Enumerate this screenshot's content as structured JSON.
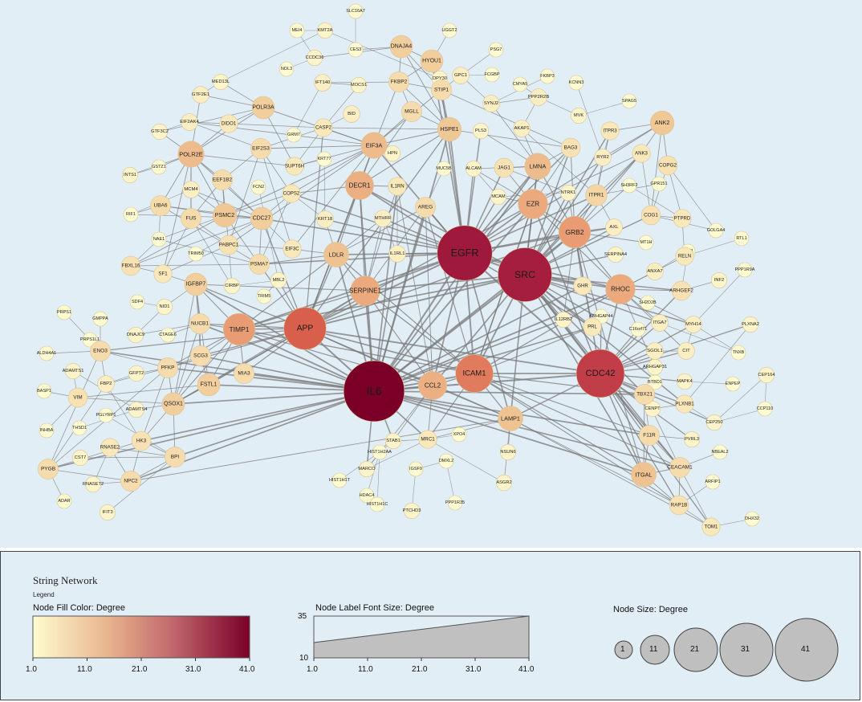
{
  "colors": {
    "background": "#e2eef6",
    "edge": "#7a7a7a",
    "node_stroke": "#d8c49a",
    "degree_low": "#fffbd0",
    "degree_high": "#7a0028"
  },
  "nodes": [
    {
      "label": "SLC16A7",
      "deg": 1
    },
    {
      "label": "MEI4",
      "deg": 1
    },
    {
      "label": "KMT2A",
      "deg": 2
    },
    {
      "label": "CES3",
      "deg": 1
    },
    {
      "label": "DNAJA4",
      "deg": 8
    },
    {
      "label": "UGGT2",
      "deg": 1
    },
    {
      "label": "HYOU1",
      "deg": 8
    },
    {
      "label": "PSG7",
      "deg": 1
    },
    {
      "label": "CCDC36",
      "deg": 2
    },
    {
      "label": "DPY30",
      "deg": 2
    },
    {
      "label": "NOL3",
      "deg": 1
    },
    {
      "label": "FCGBP",
      "deg": 1
    },
    {
      "label": "MED13L",
      "deg": 2
    },
    {
      "label": "IFT140",
      "deg": 3
    },
    {
      "label": "MOCS1",
      "deg": 2
    },
    {
      "label": "FKBP2",
      "deg": 6
    },
    {
      "label": "STIP1",
      "deg": 6
    },
    {
      "label": "GPC1",
      "deg": 3
    },
    {
      "label": "CMYA5",
      "deg": 1
    },
    {
      "label": "FKBP3",
      "deg": 1
    },
    {
      "label": "KCNN3",
      "deg": 1
    },
    {
      "label": "GTF2E1",
      "deg": 3
    },
    {
      "label": "POLR3A",
      "deg": 8
    },
    {
      "label": "MGLL",
      "deg": 6
    },
    {
      "label": "SYNJ2",
      "deg": 3
    },
    {
      "label": "PPP2R2B",
      "deg": 3
    },
    {
      "label": "MVK",
      "deg": 2
    },
    {
      "label": "SPAG5",
      "deg": 1
    },
    {
      "label": "EIF2AK4",
      "deg": 3
    },
    {
      "label": "DIDO1",
      "deg": 4
    },
    {
      "label": "BID",
      "deg": 3
    },
    {
      "label": "CASP2",
      "deg": 4
    },
    {
      "label": "HSPE1",
      "deg": 9
    },
    {
      "label": "PLS3",
      "deg": 2
    },
    {
      "label": "AKAP1",
      "deg": 3
    },
    {
      "label": "ANK2",
      "deg": 9
    },
    {
      "label": "GTF3C2",
      "deg": 2
    },
    {
      "label": "GRM7",
      "deg": 1
    },
    {
      "label": "EIF2S3",
      "deg": 6
    },
    {
      "label": "EIF3A",
      "deg": 11
    },
    {
      "label": "ITPR3",
      "deg": 4
    },
    {
      "label": "POLR2E",
      "deg": 11
    },
    {
      "label": "KRT77",
      "deg": 1
    },
    {
      "label": "SUPT6H",
      "deg": 4
    },
    {
      "label": "HPN",
      "deg": 2
    },
    {
      "label": "BAG3",
      "deg": 5
    },
    {
      "label": "ANK3",
      "deg": 4
    },
    {
      "label": "GSTZ1",
      "deg": 1
    },
    {
      "label": "MUC5B",
      "deg": 1
    },
    {
      "label": "ALCAM",
      "deg": 2
    },
    {
      "label": "JAG1",
      "deg": 5
    },
    {
      "label": "LMNA",
      "deg": 11
    },
    {
      "label": "RYR2",
      "deg": 3
    },
    {
      "label": "COPG2",
      "deg": 5
    },
    {
      "label": "INTS1",
      "deg": 2
    },
    {
      "label": "EEF1B2",
      "deg": 6
    },
    {
      "label": "DECR1",
      "deg": 13
    },
    {
      "label": "IL1RN",
      "deg": 4
    },
    {
      "label": "MCM4",
      "deg": 3
    },
    {
      "label": "FCN2",
      "deg": 1
    },
    {
      "label": "COPS2",
      "deg": 4
    },
    {
      "label": "SH3RF2",
      "deg": 1
    },
    {
      "label": "GPR151",
      "deg": 1
    },
    {
      "label": "UBA6",
      "deg": 6
    },
    {
      "label": "MCAM",
      "deg": 2
    },
    {
      "label": "NTRK1",
      "deg": 2
    },
    {
      "label": "ITPR1",
      "deg": 7
    },
    {
      "label": "RIF1",
      "deg": 1
    },
    {
      "label": "FUS",
      "deg": 6
    },
    {
      "label": "PSMC2",
      "deg": 9
    },
    {
      "label": "CDC27",
      "deg": 8
    },
    {
      "label": "AREG",
      "deg": 6
    },
    {
      "label": "EZR",
      "deg": 14
    },
    {
      "label": "COG1",
      "deg": 5
    },
    {
      "label": "PTPRD",
      "deg": 4
    },
    {
      "label": "KRT18",
      "deg": 3
    },
    {
      "label": "MTHFR",
      "deg": 3
    },
    {
      "label": "GOLGA4",
      "deg": 1
    },
    {
      "label": "NAE1",
      "deg": 1
    },
    {
      "label": "PABPC1",
      "deg": 5
    },
    {
      "label": "EIF3C",
      "deg": 4
    },
    {
      "label": "GRB2",
      "deg": 16
    },
    {
      "label": "AXL",
      "deg": 3
    },
    {
      "label": "MT1H",
      "deg": 1
    },
    {
      "label": "PEF1",
      "deg": 1
    },
    {
      "label": "RTL1",
      "deg": 1
    },
    {
      "label": "FBXL16",
      "deg": 5
    },
    {
      "label": "SF1",
      "deg": 4
    },
    {
      "label": "TRIM50",
      "deg": 1
    },
    {
      "label": "LDLR",
      "deg": 10
    },
    {
      "label": "IL1RL1",
      "deg": 3
    },
    {
      "label": "EGFR",
      "deg": 36
    },
    {
      "label": "RELN",
      "deg": 4
    },
    {
      "label": "PSMA7",
      "deg": 6
    },
    {
      "label": "SERPINA4",
      "deg": 2
    },
    {
      "label": "SRC",
      "deg": 35
    },
    {
      "label": "ANXA7",
      "deg": 3
    },
    {
      "label": "MBL2",
      "deg": 2
    },
    {
      "label": "CIRBP",
      "deg": 2
    },
    {
      "label": "PPP1R9A",
      "deg": 1
    },
    {
      "label": "IGFBP7",
      "deg": 8
    },
    {
      "label": "INF2",
      "deg": 2
    },
    {
      "label": "SERPINE1",
      "deg": 14
    },
    {
      "label": "GHR",
      "deg": 4
    },
    {
      "label": "RHOC",
      "deg": 14
    },
    {
      "label": "ARHGEF2",
      "deg": 5
    },
    {
      "label": "TRIM5",
      "deg": 1
    },
    {
      "label": "SH2D2B",
      "deg": 1
    },
    {
      "label": "PRPS1",
      "deg": 1
    },
    {
      "label": "SDF4",
      "deg": 1
    },
    {
      "label": "NID1",
      "deg": 2
    },
    {
      "label": "GMPPA",
      "deg": 1
    },
    {
      "label": "PRPS1L1",
      "deg": 1
    },
    {
      "label": "NUCB1",
      "deg": 6
    },
    {
      "label": "APP",
      "deg": 25
    },
    {
      "label": "TIMP1",
      "deg": 16
    },
    {
      "label": "DNAJC9",
      "deg": 2
    },
    {
      "label": "CTAGE6",
      "deg": 1
    },
    {
      "label": "IL12RB2",
      "deg": 2
    },
    {
      "label": "PRL",
      "deg": 4
    },
    {
      "label": "ARHGAP44",
      "deg": 1
    },
    {
      "label": "ITGA7",
      "deg": 3
    },
    {
      "label": "MYH14",
      "deg": 3
    },
    {
      "label": "PLXNA2",
      "deg": 2
    },
    {
      "label": "C16orf71",
      "deg": 1
    },
    {
      "label": "ALDH4A1",
      "deg": 1
    },
    {
      "label": "ENO3",
      "deg": 6
    },
    {
      "label": "ADAMTS1",
      "deg": 2
    },
    {
      "label": "GFPT2",
      "deg": 2
    },
    {
      "label": "PFKP",
      "deg": 6
    },
    {
      "label": "SCG3",
      "deg": 6
    },
    {
      "label": "ICAM1",
      "deg": 21
    },
    {
      "label": "SGOL1",
      "deg": 3
    },
    {
      "label": "CIT",
      "deg": 3
    },
    {
      "label": "TNXB",
      "deg": 1
    },
    {
      "label": "CDC42",
      "deg": 30
    },
    {
      "label": "ARHGAP31",
      "deg": 2
    },
    {
      "label": "MIA3",
      "deg": 6
    },
    {
      "label": "IL6",
      "deg": 41
    },
    {
      "label": "CCL2",
      "deg": 13
    },
    {
      "label": "FBP2",
      "deg": 3
    },
    {
      "label": "CEP164",
      "deg": 2
    },
    {
      "label": "BASP1",
      "deg": 1
    },
    {
      "label": "VIM",
      "deg": 5
    },
    {
      "label": "FSTL1",
      "deg": 8
    },
    {
      "label": "BTBD1",
      "deg": 1
    },
    {
      "label": "MAPK4",
      "deg": 2
    },
    {
      "label": "ENPEP",
      "deg": 1
    },
    {
      "label": "ADAMTS4",
      "deg": 2
    },
    {
      "label": "QSOX1",
      "deg": 8
    },
    {
      "label": "PGLYRP1",
      "deg": 1
    },
    {
      "label": "TBX21",
      "deg": 6
    },
    {
      "label": "CCP110",
      "deg": 1
    },
    {
      "label": "CENPT",
      "deg": 2
    },
    {
      "label": "PLXNB1",
      "deg": 4
    },
    {
      "label": "CEP250",
      "deg": 2
    },
    {
      "label": "LAMP1",
      "deg": 10
    },
    {
      "label": "INHBA",
      "deg": 1
    },
    {
      "label": "THSD1",
      "deg": 1
    },
    {
      "label": "HK3",
      "deg": 5
    },
    {
      "label": "STAB1",
      "deg": 2
    },
    {
      "label": "XPO4",
      "deg": 1
    },
    {
      "label": "MRC1",
      "deg": 4
    },
    {
      "label": "F11R",
      "deg": 6
    },
    {
      "label": "PVRL3",
      "deg": 2
    },
    {
      "label": "RNASE2",
      "deg": 4
    },
    {
      "label": "CST7",
      "deg": 2
    },
    {
      "label": "BPI",
      "deg": 6
    },
    {
      "label": "HIST1H2AA",
      "deg": 1
    },
    {
      "label": "NSUN6",
      "deg": 2
    },
    {
      "label": "DMXL2",
      "deg": 1
    },
    {
      "label": "NBEAL2",
      "deg": 1
    },
    {
      "label": "CEACAM1",
      "deg": 6
    },
    {
      "label": "PYGB",
      "deg": 6
    },
    {
      "label": "RNASET2",
      "deg": 2
    },
    {
      "label": "NPC2",
      "deg": 6
    },
    {
      "label": "MARCO",
      "deg": 2
    },
    {
      "label": "IGSF9",
      "deg": 1
    },
    {
      "label": "ITGAL",
      "deg": 10
    },
    {
      "label": "ARFIP1",
      "deg": 1
    },
    {
      "label": "HIST1H1T",
      "deg": 1
    },
    {
      "label": "ASGR2",
      "deg": 2
    },
    {
      "label": "HDAC4",
      "deg": 1
    },
    {
      "label": "PPP1R35",
      "deg": 1
    },
    {
      "label": "RAP1B",
      "deg": 5
    },
    {
      "label": "ADAR",
      "deg": 1
    },
    {
      "label": "IFIT3",
      "deg": 2
    },
    {
      "label": "HIST1H1C",
      "deg": 1
    },
    {
      "label": "PTCHD3",
      "deg": 2
    },
    {
      "label": "TOM1",
      "deg": 4
    },
    {
      "label": "DHX32",
      "deg": 1
    }
  ],
  "legend": {
    "title": "String Network",
    "subtitle": "Legend",
    "fill_header": "Node Fill Color:  Degree",
    "font_header": "Node Label Font Size:  Degree",
    "size_header": "Node Size:  Degree",
    "ticks": [
      "1.0",
      "11.0",
      "21.0",
      "31.0",
      "41.0"
    ],
    "font_axis": [
      "35",
      "10"
    ],
    "size_samples": [
      "1",
      "11",
      "21",
      "31",
      "41"
    ]
  }
}
